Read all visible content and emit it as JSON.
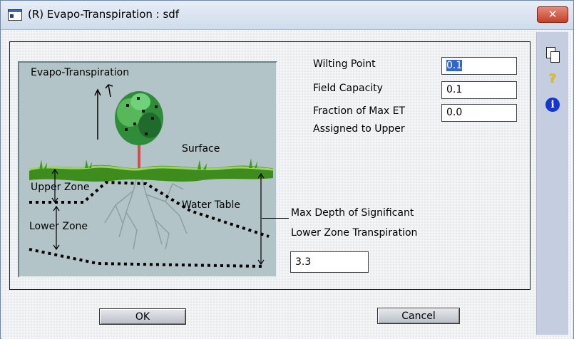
{
  "window": {
    "title": "(R) Evapo-Transpiration : sdf",
    "close_label": "✕"
  },
  "diagram": {
    "labels": {
      "evapo": "Evapo-Transpiration",
      "surface": "Surface",
      "upper_zone": "Upper Zone",
      "water_table": "Water Table",
      "lower_zone": "Lower Zone"
    }
  },
  "fields": {
    "wilting_point": {
      "label": "Wilting Point",
      "value": "0.1"
    },
    "field_capacity": {
      "label": "Field Capacity",
      "value": "0.1"
    },
    "fraction_max_et": {
      "label_line1": "Fraction of Max ET",
      "label_line2": "Assigned to Upper",
      "value": "0.0"
    },
    "max_depth": {
      "label_line1": "Max Depth of Significant",
      "label_line2": "Lower Zone Transpiration",
      "value": "3.3"
    }
  },
  "buttons": {
    "ok": "OK",
    "cancel": "Cancel"
  },
  "sidebar": {
    "icons": [
      "copy-icon",
      "help-icon",
      "info-icon"
    ],
    "help_glyph": "?",
    "info_glyph": "i"
  },
  "colors": {
    "selection": "#3366cc",
    "close_button": "#c6402a",
    "diagram_bg": "#b3c4c9"
  }
}
